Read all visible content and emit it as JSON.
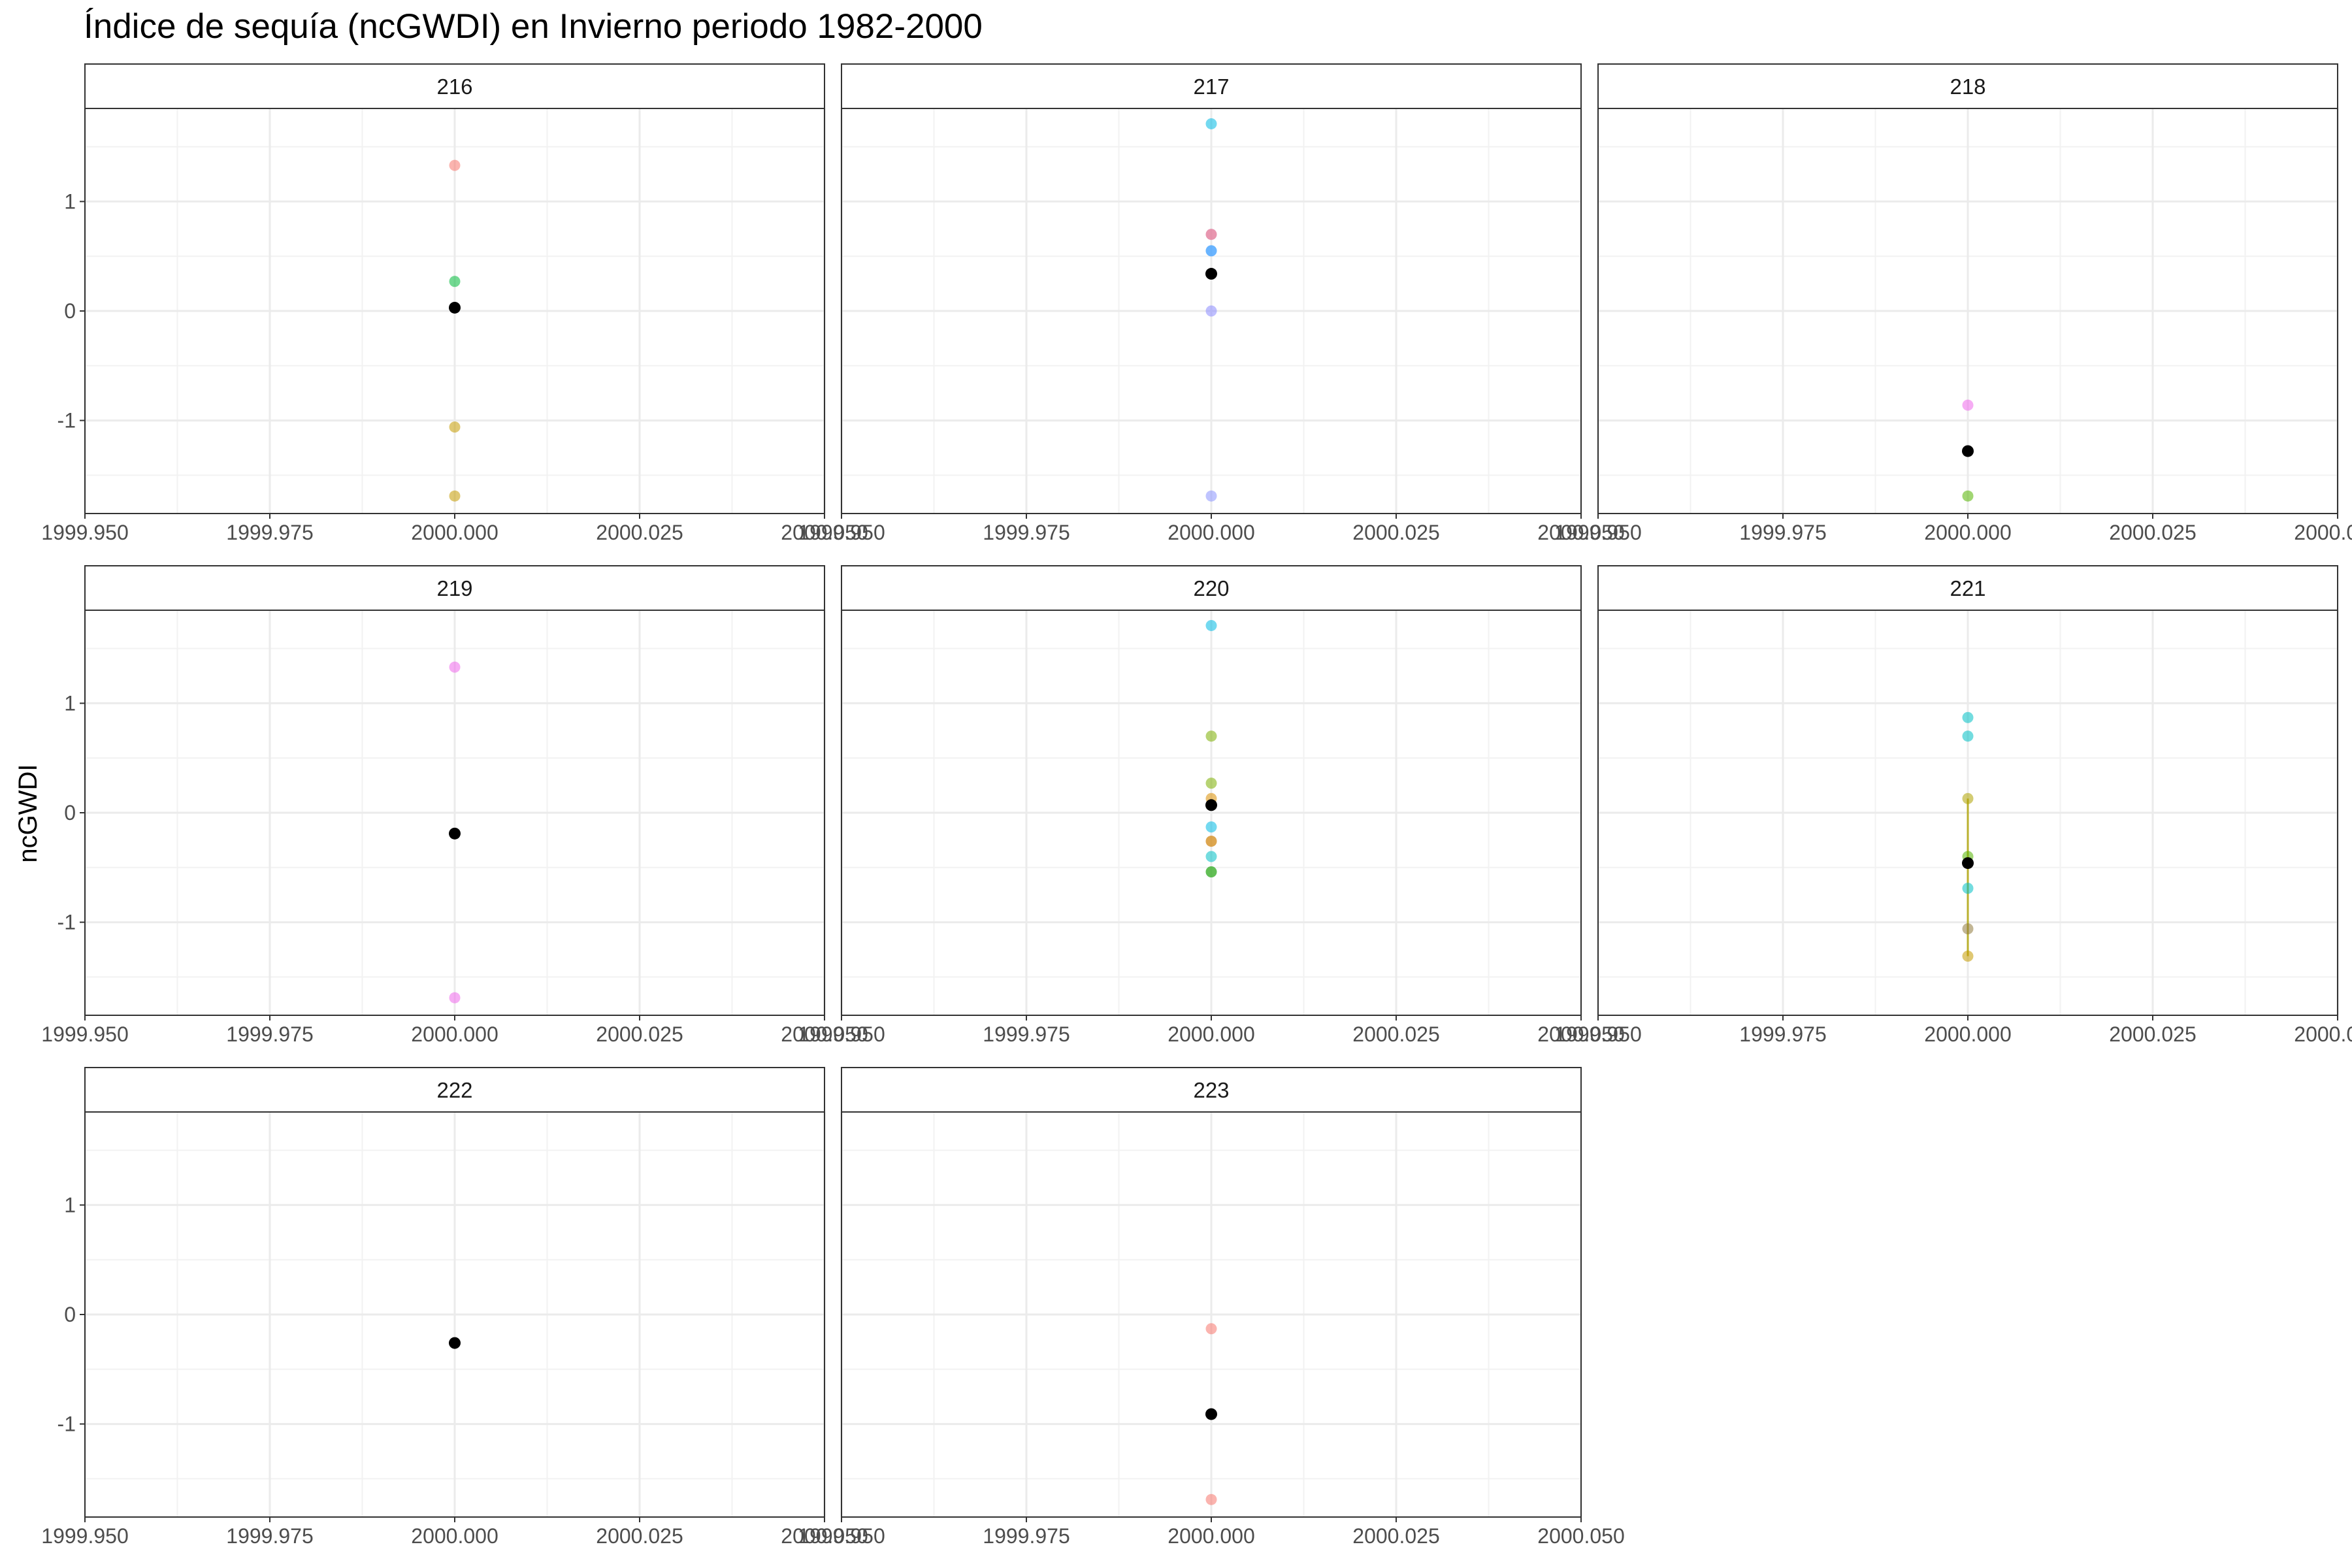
{
  "chart_data": {
    "type": "scatter",
    "title": "Índice de sequía (ncGWDI) en Invierno periodo 1982-2000",
    "xlabel": "",
    "ylabel": "ncGWDI",
    "xlim": [
      1999.95,
      2000.05
    ],
    "ylim": [
      -1.85,
      1.85
    ],
    "x_ticks": [
      "1999.950",
      "1999.975",
      "2000.000",
      "2000.025",
      "2000.050"
    ],
    "y_ticks": [
      "-1",
      "0",
      "1"
    ],
    "grid": true,
    "legend": "none",
    "mean_color": "#000000",
    "panels": [
      {
        "label": "216",
        "points": [
          {
            "x": 2000,
            "y": 1.33,
            "color": "#F8766D"
          },
          {
            "x": 2000,
            "y": 0.27,
            "color": "#00BA38"
          },
          {
            "x": 2000,
            "y": -1.06,
            "color": "#C49A00"
          },
          {
            "x": 2000,
            "y": -1.69,
            "color": "#C49A00"
          }
        ],
        "mean": {
          "x": 2000,
          "y": 0.03
        }
      },
      {
        "label": "217",
        "points": [
          {
            "x": 2000,
            "y": 1.71,
            "color": "#00B9E3"
          },
          {
            "x": 2000,
            "y": 0.7,
            "color": "#B385FF"
          },
          {
            "x": 2000,
            "y": 0.7,
            "color": "#F8766D"
          },
          {
            "x": 2000,
            "y": 0.55,
            "color": "#00A9FF"
          },
          {
            "x": 2000,
            "y": 0.55,
            "color": "#619CFF"
          },
          {
            "x": 2000,
            "y": 0.0,
            "color": "#8B8BFF"
          },
          {
            "x": 2000,
            "y": -1.69,
            "color": "#8B93FF"
          }
        ],
        "mean": {
          "x": 2000,
          "y": 0.34
        }
      },
      {
        "label": "218",
        "points": [
          {
            "x": 2000,
            "y": -0.86,
            "color": "#EF67EB"
          },
          {
            "x": 2000,
            "y": -1.69,
            "color": "#53B400"
          }
        ],
        "mean": {
          "x": 2000,
          "y": -1.28
        }
      },
      {
        "label": "219",
        "points": [
          {
            "x": 2000,
            "y": 1.33,
            "color": "#EF67EB"
          },
          {
            "x": 2000,
            "y": -1.69,
            "color": "#EF67EB"
          }
        ],
        "mean": {
          "x": 2000,
          "y": -0.19
        }
      },
      {
        "label": "220",
        "points": [
          {
            "x": 2000,
            "y": 1.71,
            "color": "#00B9E3"
          },
          {
            "x": 2000,
            "y": 0.7,
            "color": "#7CAE00"
          },
          {
            "x": 2000,
            "y": 0.27,
            "color": "#7CAE00"
          },
          {
            "x": 2000,
            "y": 0.13,
            "color": "#DB8E00"
          },
          {
            "x": 2000,
            "y": -0.13,
            "color": "#00B9E3"
          },
          {
            "x": 2000,
            "y": -0.26,
            "color": "#F8766D"
          },
          {
            "x": 2000,
            "y": -0.26,
            "color": "#C49A00"
          },
          {
            "x": 2000,
            "y": -0.4,
            "color": "#00BFC4"
          },
          {
            "x": 2000,
            "y": -0.54,
            "color": "#00A087"
          },
          {
            "x": 2000,
            "y": -0.54,
            "color": "#53B400"
          }
        ],
        "mean": {
          "x": 2000,
          "y": 0.07
        }
      },
      {
        "label": "221",
        "points": [
          {
            "x": 2000,
            "y": 0.87,
            "color": "#00BFC4"
          },
          {
            "x": 2000,
            "y": 0.7,
            "color": "#00BFC4"
          },
          {
            "x": 2000,
            "y": 0.13,
            "color": "#AEA200"
          },
          {
            "x": 2000,
            "y": -0.4,
            "color": "#53B400"
          },
          {
            "x": 2000,
            "y": -0.69,
            "color": "#00BFC4"
          },
          {
            "x": 2000,
            "y": -1.06,
            "color": "#8F7A3C"
          },
          {
            "x": 2000,
            "y": -1.31,
            "color": "#C49A00"
          }
        ],
        "lines": [
          {
            "x": 2000,
            "y_from": 0.13,
            "y_to": -1.31,
            "color": "#AEA200"
          }
        ],
        "mean": {
          "x": 2000,
          "y": -0.46
        }
      },
      {
        "label": "222",
        "points": [],
        "mean": {
          "x": 2000,
          "y": -0.26
        }
      },
      {
        "label": "223",
        "points": [
          {
            "x": 2000,
            "y": -0.13,
            "color": "#F8766D"
          },
          {
            "x": 2000,
            "y": -1.69,
            "color": "#F8766D"
          }
        ],
        "mean": {
          "x": 2000,
          "y": -0.91
        }
      }
    ]
  }
}
